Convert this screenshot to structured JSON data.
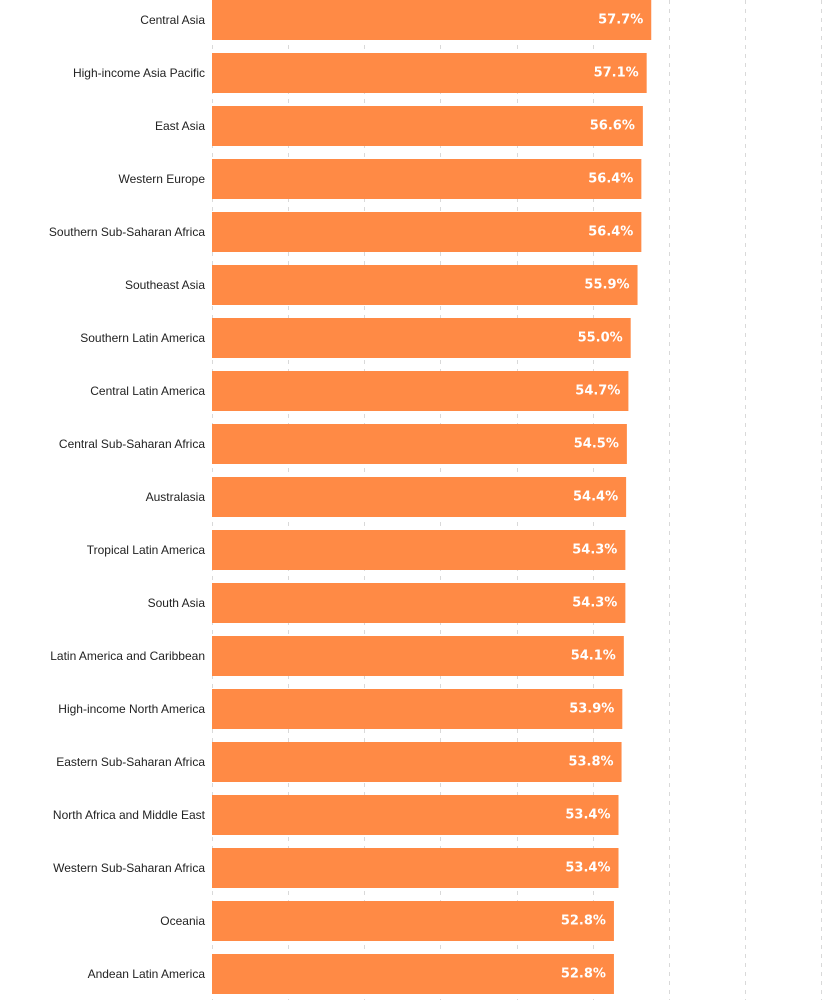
{
  "chart_data": {
    "type": "bar",
    "orientation": "horizontal",
    "categories": [
      "Central Asia",
      "High-income Asia Pacific",
      "East Asia",
      "Western Europe",
      "Southern Sub-Saharan Africa",
      "Southeast Asia",
      "Southern Latin America",
      "Central Latin America",
      "Central Sub-Saharan Africa",
      "Australasia",
      "Tropical Latin America",
      "South Asia",
      "Latin America and Caribbean",
      "High-income North America",
      "Eastern Sub-Saharan Africa",
      "North Africa and Middle East",
      "Western Sub-Saharan Africa",
      "Oceania",
      "Andean Latin America"
    ],
    "values": [
      57.7,
      57.1,
      56.6,
      56.4,
      56.4,
      55.9,
      55.0,
      54.7,
      54.5,
      54.4,
      54.3,
      54.3,
      54.1,
      53.9,
      53.8,
      53.4,
      53.4,
      52.8,
      52.8
    ],
    "value_labels": [
      "57.7%",
      "57.1%",
      "56.6%",
      "56.4%",
      "56.4%",
      "55.9%",
      "55.0%",
      "54.7%",
      "54.5%",
      "54.4%",
      "54.3%",
      "54.3%",
      "54.1%",
      "53.9%",
      "53.8%",
      "53.4%",
      "53.4%",
      "52.8%",
      "52.8%"
    ],
    "xlim": [
      0,
      80
    ],
    "grid": true,
    "bar_color": "#FF8A45",
    "label_color": "#FFFFFF",
    "title": "",
    "xlabel": "",
    "ylabel": ""
  }
}
